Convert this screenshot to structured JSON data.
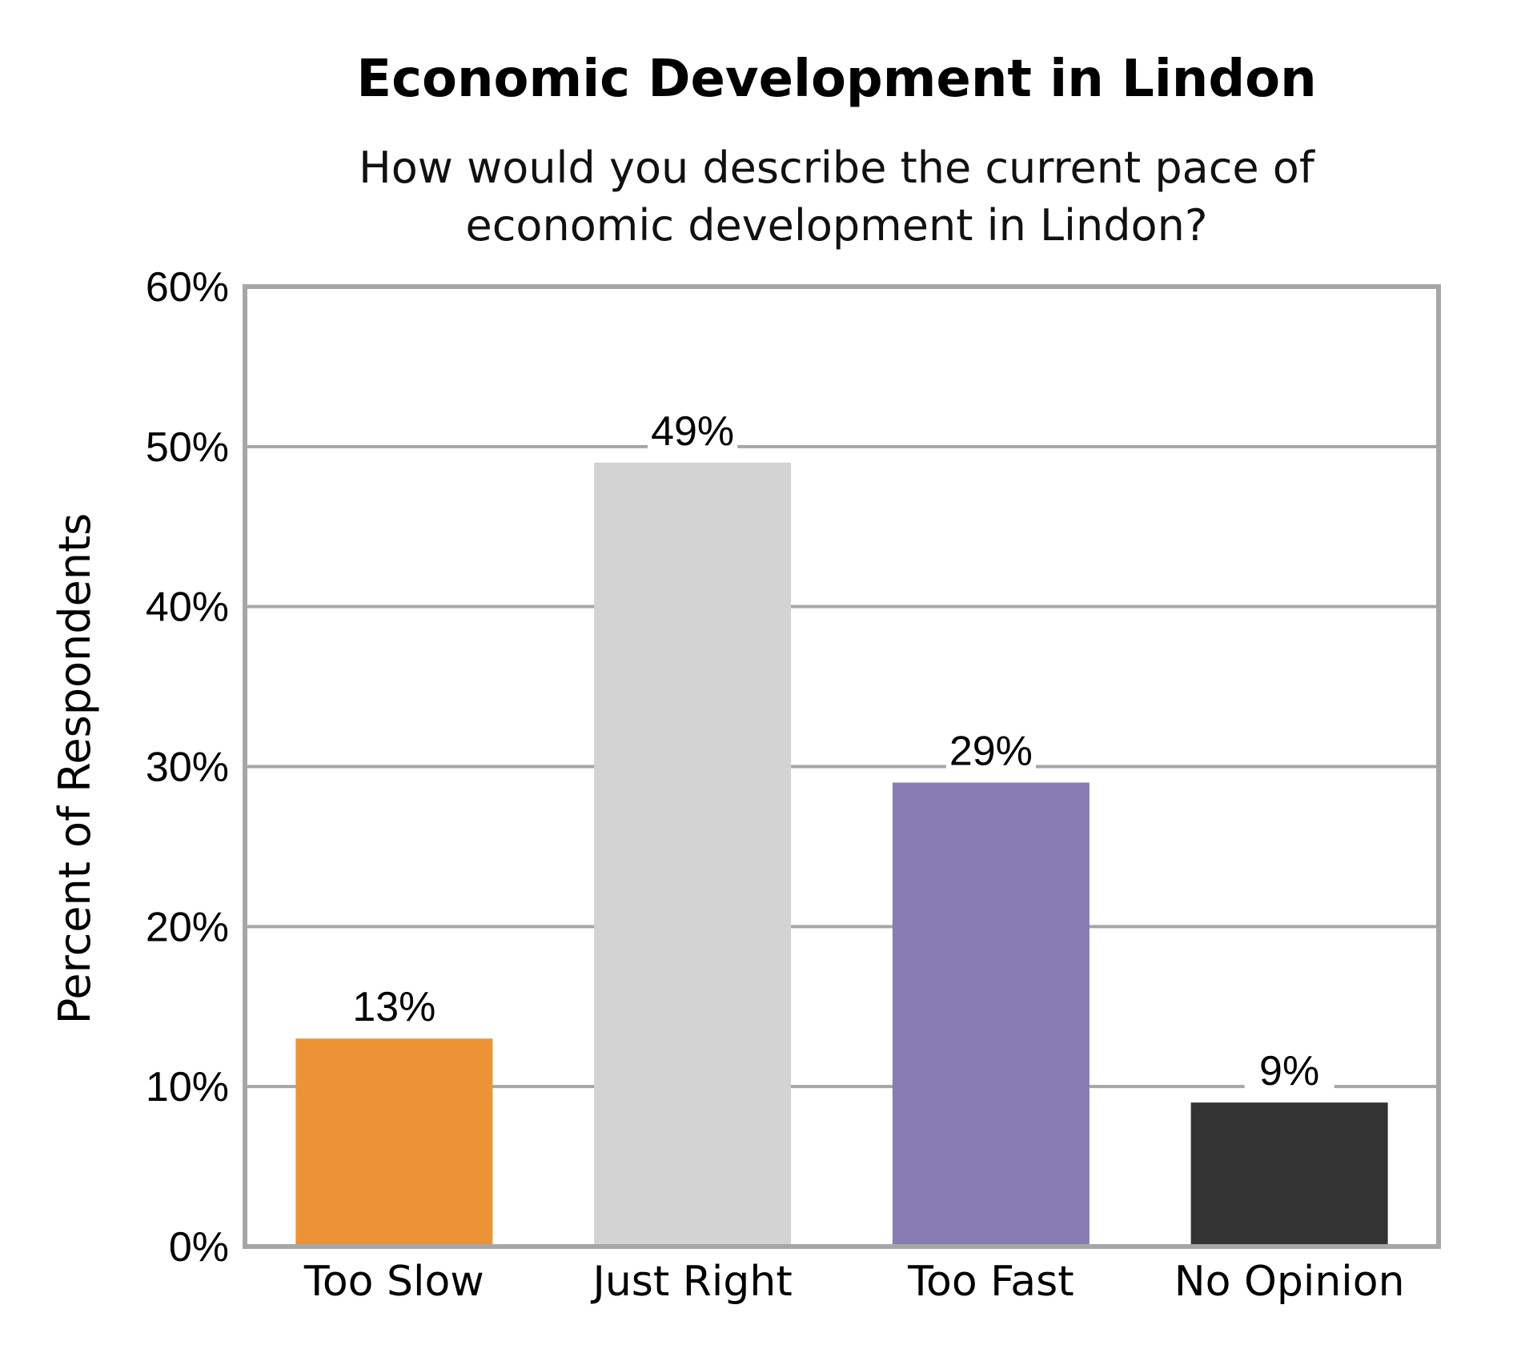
{
  "chart_data": {
    "type": "bar",
    "title": "Economic Development in Lindon",
    "subtitle_lines": [
      "How would you describe the current pace of",
      "economic development in Lindon?"
    ],
    "ylabel": "Percent of Respondents",
    "xlabel": "",
    "ylim": [
      0,
      60
    ],
    "yticks": [
      0,
      10,
      20,
      30,
      40,
      50,
      60
    ],
    "ytick_labels": [
      "0%",
      "10%",
      "20%",
      "30%",
      "40%",
      "50%",
      "60%"
    ],
    "grid": true,
    "categories": [
      "Too Slow",
      "Just Right",
      "Too Fast",
      "No Opinion"
    ],
    "values": [
      13,
      49,
      29,
      9
    ],
    "data_labels": [
      "13%",
      "49%",
      "29%",
      "9%"
    ],
    "colors": [
      "#EC9335",
      "#D3D3D3",
      "#887CB4",
      "#333333"
    ],
    "frame_color": "#A6A6A6",
    "grid_color": "#A6A6A6"
  }
}
